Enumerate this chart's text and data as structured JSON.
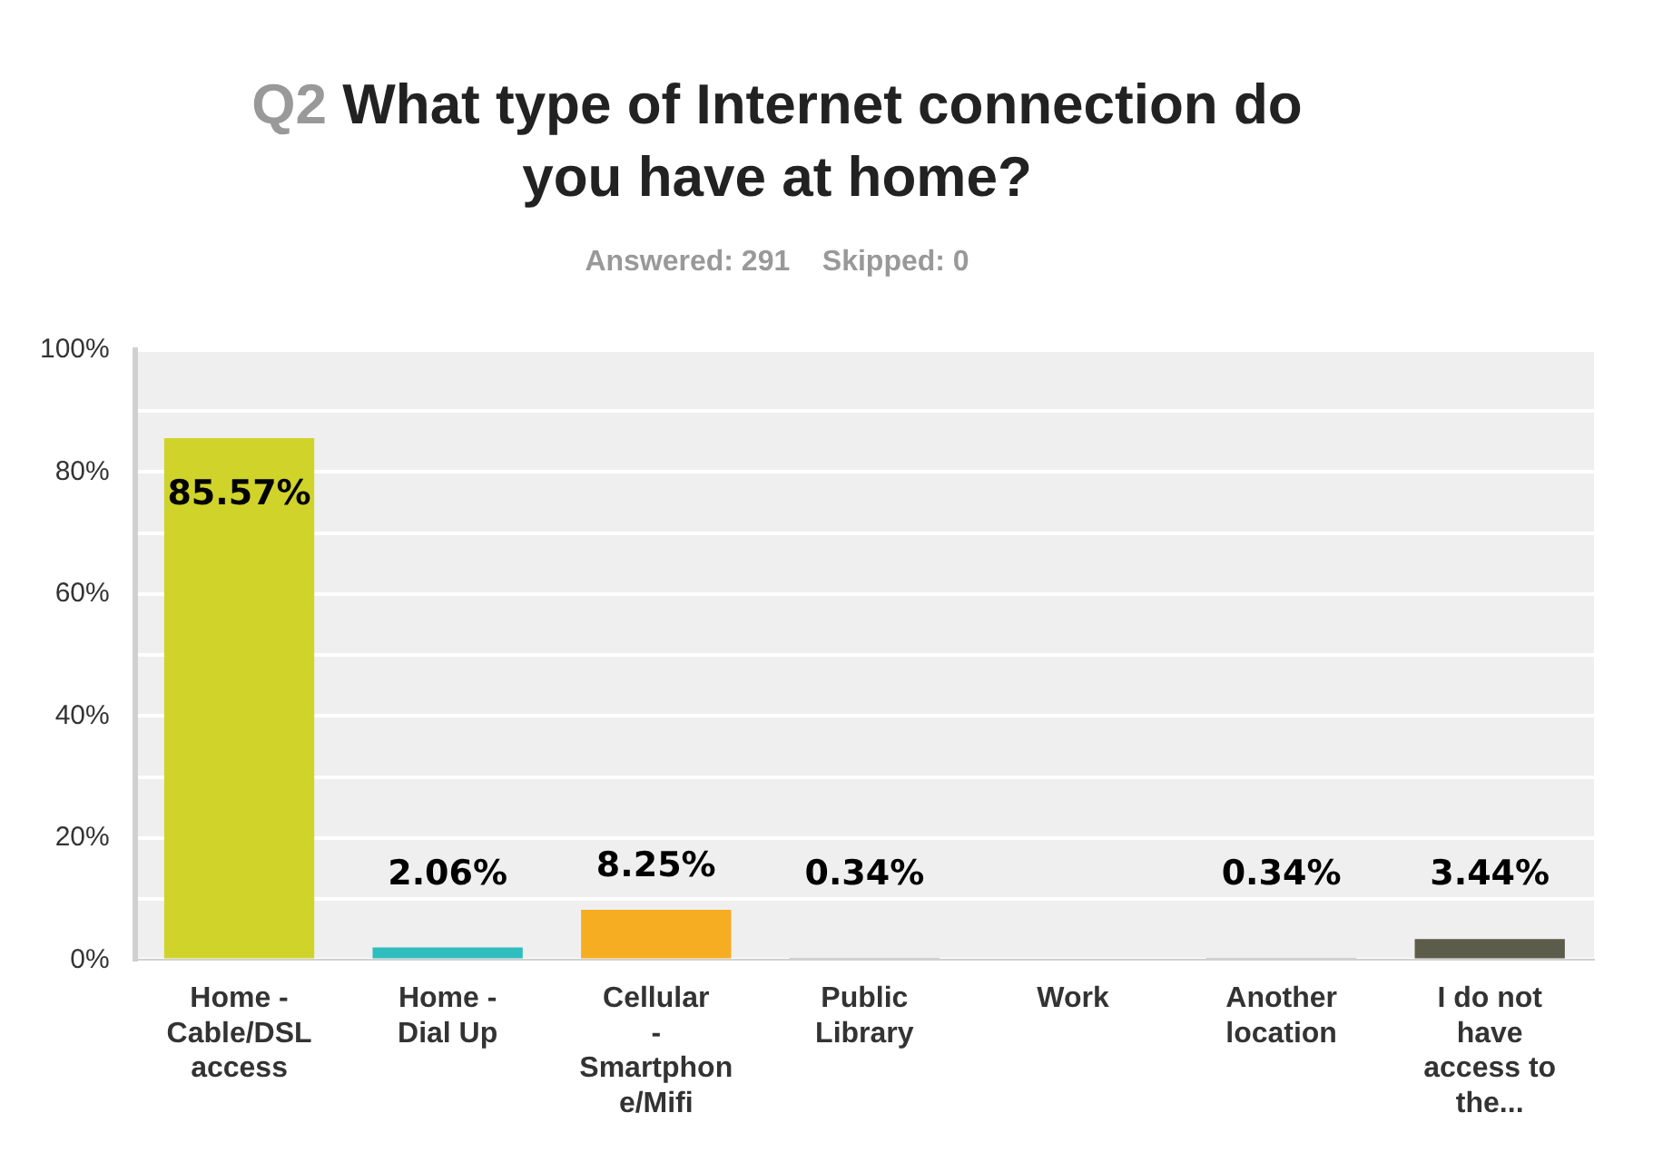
{
  "chart_data": {
    "type": "bar",
    "title": "Q2 What type of Internet connection do you have at home?",
    "subtitle": "Answered: 291    Skipped: 0",
    "categories": [
      "Home - Cable/DSL access",
      "Home - Dial Up",
      "Cellular - Smartphone/Mifi",
      "Public Library",
      "Work",
      "Another location",
      "I do not have access to the..."
    ],
    "values": [
      85.57,
      2.06,
      8.25,
      0.34,
      0,
      0.34,
      3.44
    ],
    "colors": [
      "#d0d32a",
      "#2fbdbd",
      "#f7ad22",
      "#a0a0a0",
      "#a0a0a0",
      "#a0a0a0",
      "#5c5c4a"
    ],
    "value_labels": [
      "85.57%",
      "2.06%",
      "8.25%",
      "0.34%",
      null,
      "0.34%",
      "3.44%"
    ],
    "ylim": [
      0,
      100
    ],
    "yticks": [
      {
        "value": 0,
        "label": "0%"
      },
      {
        "value": 10,
        "label": null
      },
      {
        "value": 20,
        "label": "20%"
      },
      {
        "value": 30,
        "label": null
      },
      {
        "value": 40,
        "label": "40%"
      },
      {
        "value": 50,
        "label": null
      },
      {
        "value": 60,
        "label": "60%"
      },
      {
        "value": 70,
        "label": null
      },
      {
        "value": 80,
        "label": "80%"
      },
      {
        "value": 90,
        "label": null
      },
      {
        "value": 100,
        "label": "100%"
      }
    ],
    "grid": "y",
    "legend": false
  }
}
